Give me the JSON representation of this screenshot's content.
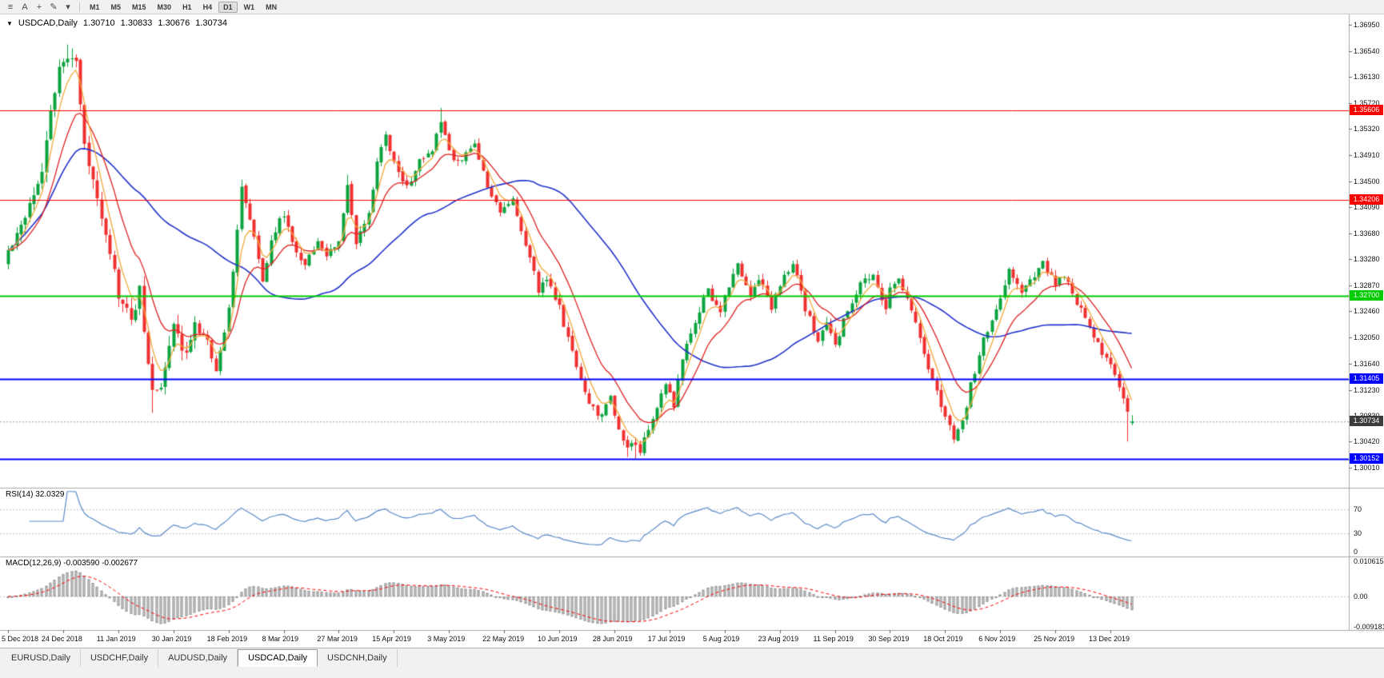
{
  "toolbar": {
    "icons": [
      {
        "name": "menu-icon",
        "glyph": "≡"
      },
      {
        "name": "letter-a-icon",
        "glyph": "A"
      },
      {
        "name": "crosshair-icon",
        "glyph": "+"
      },
      {
        "name": "pencil-icon",
        "glyph": "✎"
      },
      {
        "name": "chevron-down-icon",
        "glyph": "▾"
      }
    ],
    "timeframes": [
      "M1",
      "M5",
      "M15",
      "M30",
      "H1",
      "H4",
      "D1",
      "W1",
      "MN"
    ],
    "active_timeframe": "D1"
  },
  "symbol_info": {
    "expander_glyph": "▼",
    "title": "USDCAD,Daily",
    "open": "1.30710",
    "high": "1.30833",
    "low": "1.30676",
    "close": "1.30734"
  },
  "indicators": {
    "rsi_label": "RSI(14) 32.0329",
    "macd_label": "MACD(12,26,9) -0.003590 -0.002677"
  },
  "tabbar": {
    "tabs": [
      "EURUSD,Daily",
      "USDCHF,Daily",
      "AUDUSD,Daily",
      "USDCAD,Daily",
      "USDCNH,Daily"
    ],
    "active_tab": "USDCAD,Daily"
  },
  "chart_data": {
    "type": "candlestick",
    "symbol": "USDCAD",
    "timeframe": "Daily",
    "current_ohlc": {
      "open": 1.3071,
      "high": 1.30833,
      "low": 1.30676,
      "close": 1.30734
    },
    "price_axis_ticks": [
      "1.36950",
      "1.36540",
      "1.36130",
      "1.35720",
      "1.35320",
      "1.34910",
      "1.34500",
      "1.34090",
      "1.33680",
      "1.33280",
      "1.32870",
      "1.32460",
      "1.32050",
      "1.31640",
      "1.31230",
      "1.30830",
      "1.30420",
      "1.30010"
    ],
    "time_axis_labels": [
      "5 Dec 2018",
      "24 Dec 2018",
      "11 Jan 2019",
      "30 Jan 2019",
      "18 Feb 2019",
      "8 Mar 2019",
      "27 Mar 2019",
      "15 Apr 2019",
      "3 May 2019",
      "22 May 2019",
      "10 Jun 2019",
      "28 Jun 2019",
      "17 Jul 2019",
      "5 Aug 2019",
      "23 Aug 2019",
      "11 Sep 2019",
      "30 Sep 2019",
      "18 Oct 2019",
      "6 Nov 2019",
      "25 Nov 2019",
      "13 Dec 2019"
    ],
    "days_per_label": 13,
    "total_days": 266,
    "horizontal_lines": [
      {
        "label": "1.35606",
        "value": 1.35606,
        "color": "#FF0000",
        "width": 1
      },
      {
        "label": "1.34206",
        "value": 1.34206,
        "color": "#FF0000",
        "width": 1
      },
      {
        "label": "1.32700",
        "value": 1.327,
        "color": "#00CC00",
        "width": 2
      },
      {
        "label": "1.31405",
        "value": 1.31405,
        "color": "#0000FF",
        "width": 2
      },
      {
        "label": "1.30152",
        "value": 1.30152,
        "color": "#0000FF",
        "width": 2
      }
    ],
    "current_price_line": {
      "label": "1.30734",
      "value": 1.30734
    },
    "rsi": {
      "period_label": "RSI(14)",
      "current_value": 32.0329,
      "axis_labels": [
        {
          "text": "70",
          "value": 70
        },
        {
          "text": "30",
          "value": 30
        },
        {
          "text": "0",
          "value": 0
        }
      ]
    },
    "macd": {
      "period_label": "MACD(12,26,9)",
      "macd_value": -0.00359,
      "signal_value": -0.002677,
      "axis_labels": [
        {
          "text": "0.010615",
          "value": 0.010615
        },
        {
          "text": "0.00",
          "value": 0
        },
        {
          "text": "-0.009181",
          "value": -0.009181
        }
      ]
    },
    "close_anchors": [
      [
        0,
        1.334
      ],
      [
        4,
        1.34
      ],
      [
        8,
        1.347
      ],
      [
        10,
        1.356
      ],
      [
        12,
        1.362
      ],
      [
        14,
        1.365
      ],
      [
        16,
        1.364
      ],
      [
        18,
        1.35
      ],
      [
        21,
        1.343
      ],
      [
        24,
        1.334
      ],
      [
        26,
        1.327
      ],
      [
        29,
        1.323
      ],
      [
        31,
        1.328
      ],
      [
        33,
        1.316
      ],
      [
        34,
        1.312
      ],
      [
        36,
        1.313
      ],
      [
        39,
        1.322
      ],
      [
        42,
        1.318
      ],
      [
        44,
        1.322
      ],
      [
        47,
        1.32
      ],
      [
        49,
        1.315
      ],
      [
        52,
        1.325
      ],
      [
        55,
        1.344
      ],
      [
        58,
        1.336
      ],
      [
        60,
        1.329
      ],
      [
        62,
        1.336
      ],
      [
        65,
        1.34
      ],
      [
        67,
        1.335
      ],
      [
        70,
        1.332
      ],
      [
        73,
        1.336
      ],
      [
        75,
        1.333
      ],
      [
        78,
        1.336
      ],
      [
        80,
        1.344
      ],
      [
        82,
        1.335
      ],
      [
        85,
        1.34
      ],
      [
        87,
        1.348
      ],
      [
        89,
        1.352
      ],
      [
        92,
        1.346
      ],
      [
        94,
        1.344
      ],
      [
        97,
        1.348
      ],
      [
        100,
        1.35
      ],
      [
        102,
        1.354
      ],
      [
        105,
        1.348
      ],
      [
        108,
        1.349
      ],
      [
        110,
        1.351
      ],
      [
        113,
        1.344
      ],
      [
        116,
        1.34
      ],
      [
        119,
        1.342
      ],
      [
        122,
        1.335
      ],
      [
        125,
        1.328
      ],
      [
        127,
        1.33
      ],
      [
        130,
        1.325
      ],
      [
        133,
        1.318
      ],
      [
        136,
        1.312
      ],
      [
        139,
        1.308
      ],
      [
        142,
        1.311
      ],
      [
        144,
        1.306
      ],
      [
        146,
        1.304
      ],
      [
        149,
        1.303
      ],
      [
        152,
        1.308
      ],
      [
        155,
        1.313
      ],
      [
        157,
        1.31
      ],
      [
        159,
        1.317
      ],
      [
        162,
        1.323
      ],
      [
        165,
        1.328
      ],
      [
        168,
        1.324
      ],
      [
        169,
        1.327
      ],
      [
        172,
        1.332
      ],
      [
        175,
        1.327
      ],
      [
        177,
        1.33
      ],
      [
        180,
        1.325
      ],
      [
        182,
        1.329
      ],
      [
        185,
        1.332
      ],
      [
        188,
        1.325
      ],
      [
        191,
        1.32
      ],
      [
        193,
        1.323
      ],
      [
        195,
        1.319
      ],
      [
        198,
        1.325
      ],
      [
        201,
        1.329
      ],
      [
        204,
        1.33
      ],
      [
        207,
        1.325
      ],
      [
        208,
        1.328
      ],
      [
        210,
        1.33
      ],
      [
        213,
        1.325
      ],
      [
        216,
        1.318
      ],
      [
        219,
        1.312
      ],
      [
        221,
        1.308
      ],
      [
        223,
        1.305
      ],
      [
        225,
        1.307
      ],
      [
        227,
        1.313
      ],
      [
        230,
        1.32
      ],
      [
        233,
        1.325
      ],
      [
        234,
        1.327
      ],
      [
        236,
        1.331
      ],
      [
        239,
        1.328
      ],
      [
        242,
        1.33
      ],
      [
        244,
        1.332
      ],
      [
        247,
        1.329
      ],
      [
        249,
        1.33
      ],
      [
        252,
        1.326
      ],
      [
        255,
        1.322
      ],
      [
        258,
        1.318
      ],
      [
        260,
        1.316
      ],
      [
        262,
        1.313
      ],
      [
        264,
        1.309
      ],
      [
        265,
        1.30734
      ]
    ],
    "wick_extremes": [
      {
        "day": 14,
        "high": 1.3664
      },
      {
        "day": 15,
        "high": 1.3658
      },
      {
        "day": 55,
        "high": 1.3452
      },
      {
        "day": 80,
        "high": 1.346
      },
      {
        "day": 89,
        "high": 1.3528
      },
      {
        "day": 102,
        "high": 1.3565
      },
      {
        "day": 34,
        "low": 1.3087
      },
      {
        "day": 146,
        "low": 1.3018
      },
      {
        "day": 148,
        "low": 1.3016
      },
      {
        "day": 223,
        "low": 1.304
      },
      {
        "day": 264,
        "low": 1.3042
      }
    ],
    "colors": {
      "bull": "#0AA33E",
      "bear": "#F03030",
      "ma_fast": "#F2A93B",
      "ma_mid": "#E02020",
      "ma_slow": "#2233CC",
      "rsi_line": "#5B8BC9",
      "rsi_levels": "#C0C0C0",
      "macd_hist_fill": "#D8D8D8",
      "macd_hist_border": "#8F8F8F",
      "macd_signal": "#FF0000",
      "current_line": "#9A9A9A",
      "current_badge": "#3C3C3C"
    }
  }
}
